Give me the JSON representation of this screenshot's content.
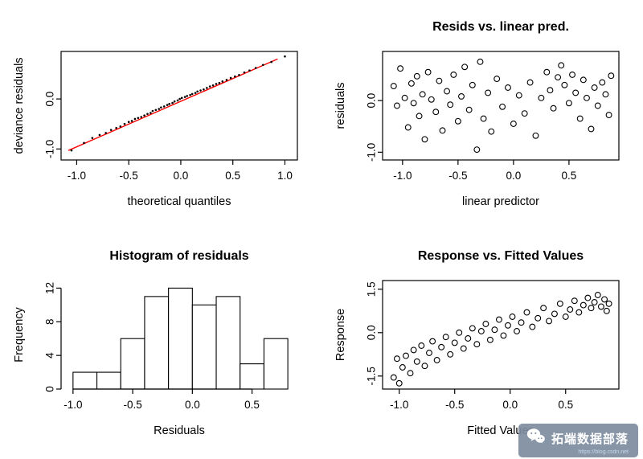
{
  "page": {
    "background": "#ffffff"
  },
  "watermark": {
    "label": "拓端数据部落",
    "sub_label": "https://blog.csdn.net",
    "bg_color": "rgba(125,140,160,0.92)",
    "icon": "wechat-icon"
  },
  "chart_data": [
    {
      "type": "scatter",
      "subtype": "qq-plot",
      "title": "",
      "xlabel": "theoretical quantiles",
      "ylabel": "deviance residuals",
      "xlim": [
        -1.15,
        1.12
      ],
      "ylim": [
        -1.22,
        0.95
      ],
      "xticks": [
        "-1.0",
        "-0.5",
        "0.0",
        "0.5",
        "1.0"
      ],
      "yticks": [
        "-1.0",
        "0.0"
      ],
      "frame": "box",
      "grid": false,
      "legend": "none",
      "marker": {
        "style": "dot",
        "radius": 1.3,
        "color": "#000000"
      },
      "ref_line": {
        "color": "#ff0000",
        "from": [
          -1.08,
          -1.03
        ],
        "to": [
          0.93,
          0.8
        ]
      },
      "points": [
        [
          -1.05,
          -1.03
        ],
        [
          -0.93,
          -0.88
        ],
        [
          -0.85,
          -0.78
        ],
        [
          -0.78,
          -0.72
        ],
        [
          -0.72,
          -0.68
        ],
        [
          -0.67,
          -0.62
        ],
        [
          -0.62,
          -0.58
        ],
        [
          -0.58,
          -0.55
        ],
        [
          -0.54,
          -0.5
        ],
        [
          -0.5,
          -0.46
        ],
        [
          -0.47,
          -0.44
        ],
        [
          -0.44,
          -0.4
        ],
        [
          -0.41,
          -0.38
        ],
        [
          -0.38,
          -0.36
        ],
        [
          -0.35,
          -0.33
        ],
        [
          -0.32,
          -0.3
        ],
        [
          -0.29,
          -0.28
        ],
        [
          -0.27,
          -0.24
        ],
        [
          -0.24,
          -0.22
        ],
        [
          -0.21,
          -0.2
        ],
        [
          -0.19,
          -0.17
        ],
        [
          -0.16,
          -0.15
        ],
        [
          -0.13,
          -0.12
        ],
        [
          -0.11,
          -0.1
        ],
        [
          -0.08,
          -0.08
        ],
        [
          -0.06,
          -0.05
        ],
        [
          -0.03,
          -0.03
        ],
        [
          -0.01,
          0.0
        ],
        [
          0.01,
          0.02
        ],
        [
          0.04,
          0.04
        ],
        [
          0.06,
          0.06
        ],
        [
          0.09,
          0.08
        ],
        [
          0.11,
          0.1
        ],
        [
          0.14,
          0.12
        ],
        [
          0.16,
          0.15
        ],
        [
          0.19,
          0.17
        ],
        [
          0.22,
          0.19
        ],
        [
          0.25,
          0.22
        ],
        [
          0.28,
          0.25
        ],
        [
          0.31,
          0.27
        ],
        [
          0.34,
          0.3
        ],
        [
          0.37,
          0.32
        ],
        [
          0.4,
          0.35
        ],
        [
          0.44,
          0.38
        ],
        [
          0.48,
          0.42
        ],
        [
          0.52,
          0.45
        ],
        [
          0.56,
          0.48
        ],
        [
          0.61,
          0.53
        ],
        [
          0.66,
          0.57
        ],
        [
          0.72,
          0.62
        ],
        [
          0.79,
          0.68
        ],
        [
          0.87,
          0.74
        ],
        [
          1.0,
          0.85
        ]
      ]
    },
    {
      "type": "scatter",
      "title": "Resids vs. linear pred.",
      "xlabel": "linear predictor",
      "ylabel": "residuals",
      "xlim": [
        -1.18,
        0.95
      ],
      "ylim": [
        -1.15,
        0.95
      ],
      "xticks": [
        "-1.0",
        "-0.5",
        "0.0",
        "0.5"
      ],
      "yticks": [
        "-1.0",
        "0.0"
      ],
      "frame": "box",
      "grid": false,
      "legend": "none",
      "marker": {
        "style": "open-circle",
        "radius": 3.4,
        "color": "#000000"
      },
      "points": [
        [
          -1.08,
          0.28
        ],
        [
          -1.05,
          -0.1
        ],
        [
          -1.02,
          0.62
        ],
        [
          -0.98,
          0.05
        ],
        [
          -0.95,
          -0.52
        ],
        [
          -0.92,
          0.33
        ],
        [
          -0.9,
          -0.05
        ],
        [
          -0.87,
          0.47
        ],
        [
          -0.85,
          -0.3
        ],
        [
          -0.82,
          0.12
        ],
        [
          -0.8,
          -0.75
        ],
        [
          -0.77,
          0.55
        ],
        [
          -0.74,
          0.02
        ],
        [
          -0.7,
          -0.22
        ],
        [
          -0.67,
          0.38
        ],
        [
          -0.64,
          -0.58
        ],
        [
          -0.6,
          0.18
        ],
        [
          -0.57,
          -0.08
        ],
        [
          -0.54,
          0.5
        ],
        [
          -0.5,
          -0.4
        ],
        [
          -0.47,
          0.08
        ],
        [
          -0.44,
          0.65
        ],
        [
          -0.4,
          -0.18
        ],
        [
          -0.37,
          0.3
        ],
        [
          -0.33,
          -0.95
        ],
        [
          -0.3,
          0.75
        ],
        [
          -0.27,
          -0.35
        ],
        [
          -0.23,
          0.15
        ],
        [
          -0.2,
          -0.6
        ],
        [
          -0.15,
          0.42
        ],
        [
          -0.1,
          -0.12
        ],
        [
          -0.05,
          0.25
        ],
        [
          0.0,
          -0.45
        ],
        [
          0.05,
          0.1
        ],
        [
          0.1,
          -0.25
        ],
        [
          0.15,
          0.35
        ],
        [
          0.2,
          -0.68
        ],
        [
          0.25,
          0.05
        ],
        [
          0.3,
          0.55
        ],
        [
          0.33,
          0.2
        ],
        [
          0.36,
          -0.15
        ],
        [
          0.4,
          0.45
        ],
        [
          0.43,
          0.68
        ],
        [
          0.46,
          0.3
        ],
        [
          0.5,
          -0.05
        ],
        [
          0.53,
          0.5
        ],
        [
          0.56,
          0.15
        ],
        [
          0.6,
          -0.35
        ],
        [
          0.63,
          0.4
        ],
        [
          0.66,
          0.05
        ],
        [
          0.7,
          -0.55
        ],
        [
          0.73,
          0.25
        ],
        [
          0.76,
          -0.1
        ],
        [
          0.8,
          0.35
        ],
        [
          0.83,
          0.12
        ],
        [
          0.86,
          -0.28
        ],
        [
          0.88,
          0.48
        ]
      ]
    },
    {
      "type": "histogram",
      "title": "Histogram of residuals",
      "xlabel": "Residuals",
      "ylabel": "Frequency",
      "xlim": [
        -1.1,
        0.88
      ],
      "ylim": [
        0,
        12.9
      ],
      "xticks": [
        "-1.0",
        "-0.5",
        "0.0",
        "0.5"
      ],
      "yticks": [
        "0",
        "4",
        "8",
        "12"
      ],
      "frame": "axes",
      "grid": false,
      "legend": "none",
      "bin_edges": [
        -1.0,
        -0.8,
        -0.6,
        -0.4,
        -0.2,
        0.0,
        0.2,
        0.4,
        0.6,
        0.8
      ],
      "counts": [
        2,
        2,
        6,
        11,
        12,
        10,
        11,
        3,
        6
      ]
    },
    {
      "type": "scatter",
      "title": "Response vs. Fitted Values",
      "xlabel": "Fitted Values",
      "ylabel": "Response",
      "xlim": [
        -1.15,
        0.98
      ],
      "ylim": [
        -1.95,
        1.8
      ],
      "xticks": [
        "-1.0",
        "-0.5",
        "0.0",
        "0.5"
      ],
      "yticks": [
        "-1.5",
        "0.0",
        "1.5"
      ],
      "frame": "box",
      "grid": false,
      "legend": "none",
      "marker": {
        "style": "open-circle",
        "radius": 3.4,
        "color": "#000000"
      },
      "points": [
        [
          -1.05,
          -1.55
        ],
        [
          -1.02,
          -0.9
        ],
        [
          -1.0,
          -1.75
        ],
        [
          -0.97,
          -1.2
        ],
        [
          -0.94,
          -0.8
        ],
        [
          -0.9,
          -1.4
        ],
        [
          -0.87,
          -0.6
        ],
        [
          -0.84,
          -1.0
        ],
        [
          -0.8,
          -0.45
        ],
        [
          -0.77,
          -1.15
        ],
        [
          -0.73,
          -0.7
        ],
        [
          -0.7,
          -0.3
        ],
        [
          -0.66,
          -0.95
        ],
        [
          -0.62,
          -0.5
        ],
        [
          -0.58,
          -0.15
        ],
        [
          -0.54,
          -0.75
        ],
        [
          -0.5,
          -0.35
        ],
        [
          -0.46,
          0.0
        ],
        [
          -0.42,
          -0.55
        ],
        [
          -0.38,
          -0.2
        ],
        [
          -0.34,
          0.15
        ],
        [
          -0.3,
          -0.4
        ],
        [
          -0.26,
          0.05
        ],
        [
          -0.22,
          0.3
        ],
        [
          -0.18,
          -0.25
        ],
        [
          -0.14,
          0.1
        ],
        [
          -0.1,
          0.45
        ],
        [
          -0.06,
          -0.1
        ],
        [
          -0.02,
          0.25
        ],
        [
          0.02,
          0.55
        ],
        [
          0.06,
          0.05
        ],
        [
          0.1,
          0.35
        ],
        [
          0.15,
          0.7
        ],
        [
          0.2,
          0.2
        ],
        [
          0.25,
          0.5
        ],
        [
          0.3,
          0.85
        ],
        [
          0.35,
          0.4
        ],
        [
          0.4,
          0.65
        ],
        [
          0.45,
          1.0
        ],
        [
          0.5,
          0.55
        ],
        [
          0.54,
          0.8
        ],
        [
          0.58,
          1.1
        ],
        [
          0.62,
          0.7
        ],
        [
          0.66,
          0.95
        ],
        [
          0.7,
          1.2
        ],
        [
          0.73,
          0.85
        ],
        [
          0.76,
          1.05
        ],
        [
          0.79,
          1.3
        ],
        [
          0.82,
          0.9
        ],
        [
          0.85,
          1.15
        ],
        [
          0.87,
          0.75
        ],
        [
          0.89,
          1.0
        ]
      ]
    }
  ]
}
